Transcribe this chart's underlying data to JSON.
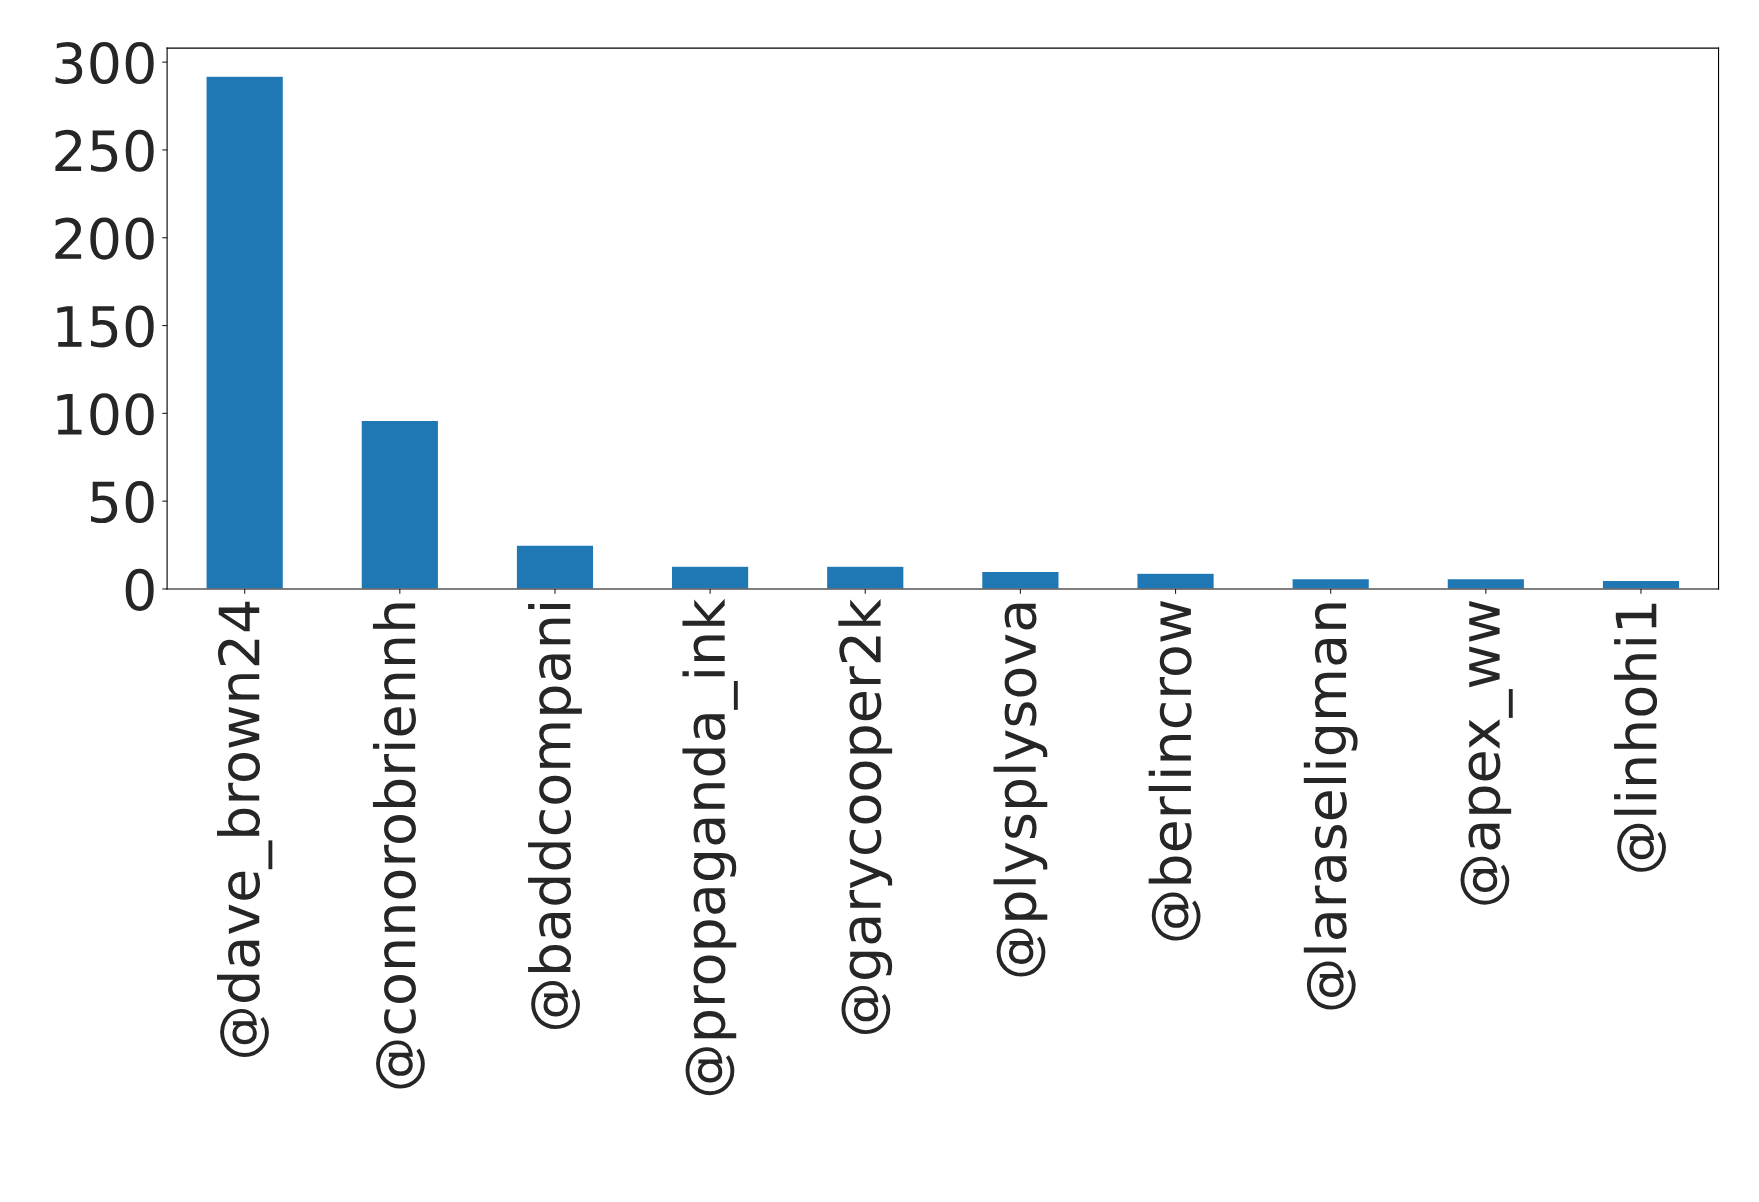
{
  "chart_data": {
    "type": "bar",
    "categories": [
      "@dave_brown24",
      "@connorobriennh",
      "@baddcompani",
      "@propaganda_ink",
      "@garycooper2k",
      "@plysplysova",
      "@berlincrow",
      "@laraseligman",
      "@apex_ww",
      "@linhohi1"
    ],
    "values": [
      292,
      96,
      25,
      13,
      13,
      10,
      9,
      6,
      6,
      5
    ],
    "color": "#1f77b4",
    "ylim": [
      0,
      308
    ],
    "yticks": [
      0,
      50,
      100,
      150,
      200,
      250,
      300
    ],
    "grid": false
  }
}
